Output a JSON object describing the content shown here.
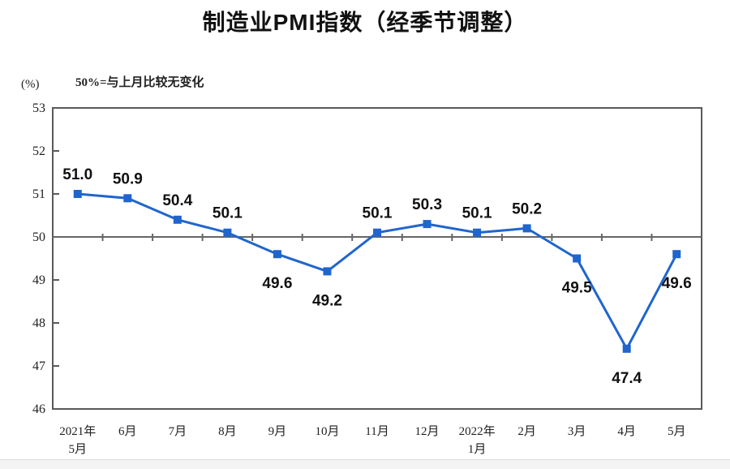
{
  "page": {
    "title": "制造业PMI指数（经季节调整）"
  },
  "chart_data": {
    "type": "line",
    "title": "制造业PMI指数（经季节调整）",
    "unit_label": "(%)",
    "note": "50%=与上月比较无变化",
    "categories": [
      [
        "2021年",
        "5月"
      ],
      [
        "6月"
      ],
      [
        "7月"
      ],
      [
        "8月"
      ],
      [
        "9月"
      ],
      [
        "10月"
      ],
      [
        "11月"
      ],
      [
        "12月"
      ],
      [
        "2022年",
        "1月"
      ],
      [
        "2月"
      ],
      [
        "3月"
      ],
      [
        "4月"
      ],
      [
        "5月"
      ]
    ],
    "series": [
      {
        "name": "制造业PMI",
        "values": [
          51.0,
          50.9,
          50.4,
          50.1,
          49.6,
          49.2,
          50.1,
          50.3,
          50.1,
          50.2,
          49.5,
          47.4,
          49.6
        ]
      }
    ],
    "y_ticks": [
      53,
      52,
      51,
      50,
      49,
      48,
      47,
      46
    ],
    "ylim": [
      46,
      53
    ],
    "reference_line": 50,
    "grid": false,
    "legend": false,
    "colors": {
      "line": "#2065cd",
      "marker": "#2065cd",
      "axis": "#595959",
      "reference": "#666666",
      "data_label": "#111111",
      "tick_label": "#222222"
    }
  }
}
